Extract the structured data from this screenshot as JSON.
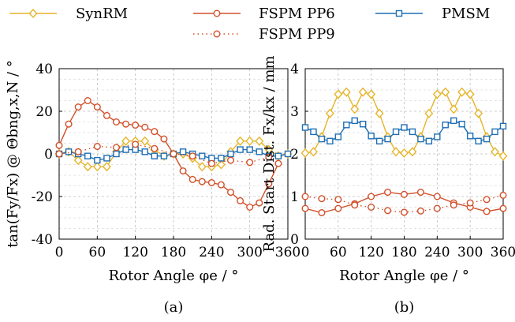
{
  "legend": {
    "entries": [
      {
        "label": "SynRM",
        "color": "#e6b429",
        "marker": "diamond",
        "dash": "solid"
      },
      {
        "label": "FSPM PP6",
        "color": "#d2502a",
        "marker": "circle",
        "dash": "solid"
      },
      {
        "label": "PMSM",
        "color": "#1f6fb5",
        "marker": "square",
        "dash": "solid"
      },
      {
        "label": "FSPM PP9",
        "color": "#d2502a",
        "marker": "circle",
        "dash": "dotted"
      }
    ]
  },
  "chart_data": [
    {
      "type": "line",
      "caption": "(a)",
      "xlabel": "Rotor Angle φe / °",
      "ylabel": "tan(Fy/Fx) @ Θbng,x,N / °",
      "xlim": [
        0,
        360
      ],
      "ylim": [
        -40,
        40
      ],
      "xticks": [
        0,
        60,
        120,
        180,
        240,
        300,
        360
      ],
      "yticks": [
        -40,
        -20,
        0,
        20,
        40
      ],
      "grid": "dashed",
      "x": [
        0,
        15,
        30,
        45,
        60,
        75,
        90,
        105,
        120,
        135,
        150,
        165,
        180,
        195,
        210,
        225,
        240,
        255,
        270,
        285,
        300,
        315,
        330,
        345,
        360
      ],
      "series": [
        {
          "name": "SynRM",
          "color": "#e6b429",
          "marker": "diamond",
          "dash": "solid",
          "values": [
            0,
            1,
            -3,
            -6,
            -6,
            -6,
            1,
            6,
            6,
            6,
            2,
            -1,
            0,
            0,
            -2,
            -6,
            -6,
            -5,
            1,
            6,
            6,
            6,
            2,
            -1,
            0
          ]
        },
        {
          "name": "FSPM PP6",
          "color": "#d2502a",
          "marker": "circle",
          "dash": "solid",
          "values": [
            4,
            14,
            22,
            25,
            22,
            18,
            15,
            14,
            13.5,
            12.5,
            10.5,
            7,
            0,
            -8,
            -12,
            -13,
            -13.5,
            -14.5,
            -18,
            -22,
            -25,
            -23,
            -14,
            -4.5,
            null
          ]
        },
        {
          "name": "PMSM",
          "color": "#1f6fb5",
          "marker": "square",
          "dash": "solid",
          "values": [
            0,
            1,
            0,
            -1,
            -3,
            -2,
            0,
            2,
            2,
            1,
            -1,
            -1,
            0,
            1,
            0,
            -1,
            -2,
            -2,
            0,
            2,
            2,
            1,
            -1,
            -1,
            0
          ]
        },
        {
          "name": "FSPM PP9",
          "color": "#d2502a",
          "marker": "circle",
          "dash": "dotted",
          "values": [
            0,
            null,
            1,
            null,
            3.5,
            null,
            3,
            null,
            4.5,
            null,
            2.5,
            null,
            0,
            null,
            -1,
            null,
            -4.5,
            null,
            -3,
            null,
            -4,
            null,
            -1.5,
            null,
            null
          ]
        }
      ]
    },
    {
      "type": "line",
      "caption": "(b)",
      "xlabel": "Rotor Angle φe / °",
      "ylabel": "Rad. Start Dist. Fx/kx / mm",
      "xlim": [
        0,
        360
      ],
      "ylim": [
        0,
        4
      ],
      "xticks": [
        0,
        60,
        120,
        180,
        240,
        300,
        360
      ],
      "yticks": [
        0,
        1,
        2,
        3,
        4
      ],
      "grid": "dashed",
      "x": [
        0,
        15,
        30,
        45,
        60,
        75,
        90,
        105,
        120,
        135,
        150,
        165,
        180,
        195,
        210,
        225,
        240,
        255,
        270,
        285,
        300,
        315,
        330,
        345,
        360
      ],
      "series": [
        {
          "name": "SynRM",
          "color": "#e6b429",
          "marker": "diamond",
          "dash": "solid",
          "values": [
            2.02,
            2.05,
            2.4,
            2.95,
            3.4,
            3.45,
            3.05,
            3.45,
            3.4,
            2.95,
            2.4,
            2.05,
            2.02,
            2.05,
            2.4,
            2.95,
            3.4,
            3.45,
            3.05,
            3.45,
            3.4,
            2.95,
            2.4,
            2.05,
            1.95
          ]
        },
        {
          "name": "FSPM PP6",
          "color": "#d2502a",
          "marker": "circle",
          "dash": "solid",
          "values": [
            0.72,
            null,
            0.62,
            null,
            0.72,
            null,
            0.83,
            null,
            1.0,
            null,
            1.1,
            null,
            1.05,
            null,
            1.1,
            null,
            1.0,
            null,
            0.85,
            null,
            0.75,
            null,
            0.65,
            null,
            0.72
          ]
        },
        {
          "name": "PMSM",
          "color": "#1f6fb5",
          "marker": "square",
          "dash": "solid",
          "values": [
            2.62,
            2.52,
            2.35,
            2.3,
            2.4,
            2.68,
            2.78,
            2.7,
            2.42,
            2.3,
            2.35,
            2.52,
            2.62,
            2.52,
            2.35,
            2.3,
            2.4,
            2.68,
            2.78,
            2.7,
            2.42,
            2.3,
            2.35,
            2.52,
            2.65
          ]
        },
        {
          "name": "FSPM PP9",
          "color": "#d2502a",
          "marker": "circle",
          "dash": "dotted",
          "values": [
            1.0,
            null,
            0.95,
            null,
            0.93,
            null,
            0.8,
            null,
            0.75,
            null,
            0.67,
            null,
            0.63,
            null,
            0.66,
            null,
            0.72,
            null,
            0.8,
            null,
            0.85,
            null,
            0.93,
            null,
            1.03
          ]
        }
      ]
    }
  ]
}
